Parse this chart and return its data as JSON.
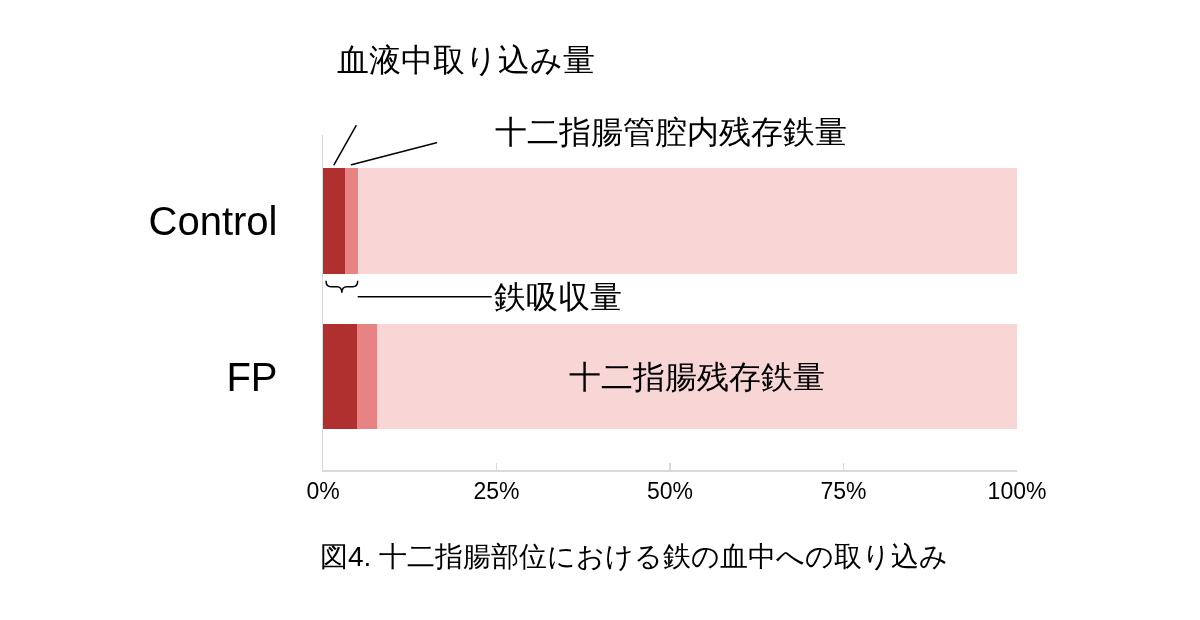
{
  "chart_data": {
    "type": "bar",
    "orientation": "horizontal",
    "stacked": true,
    "categories": [
      "Control",
      "FP"
    ],
    "series": [
      {
        "color": "#b03030",
        "values": [
          3.2,
          4.9
        ]
      },
      {
        "color": "#e78383",
        "values": [
          1.8,
          2.9
        ]
      },
      {
        "color": "#f9d6d6",
        "values": [
          95.0,
          92.2
        ]
      }
    ],
    "xlim": [
      0,
      100
    ],
    "xticks": [
      {
        "value": 0,
        "label": "0%"
      },
      {
        "value": 25,
        "label": "25%"
      },
      {
        "value": 50,
        "label": "50%"
      },
      {
        "value": 75,
        "label": "75%"
      },
      {
        "value": 100,
        "label": "100%"
      }
    ],
    "annotations": [
      "血液中取り込み量",
      "十二指腸管腔内残存鉄量",
      "鉄吸収量",
      "十二指腸残存鉄量",
      "図4. 十二指腸部位における鉄の血中への取り込み"
    ]
  }
}
